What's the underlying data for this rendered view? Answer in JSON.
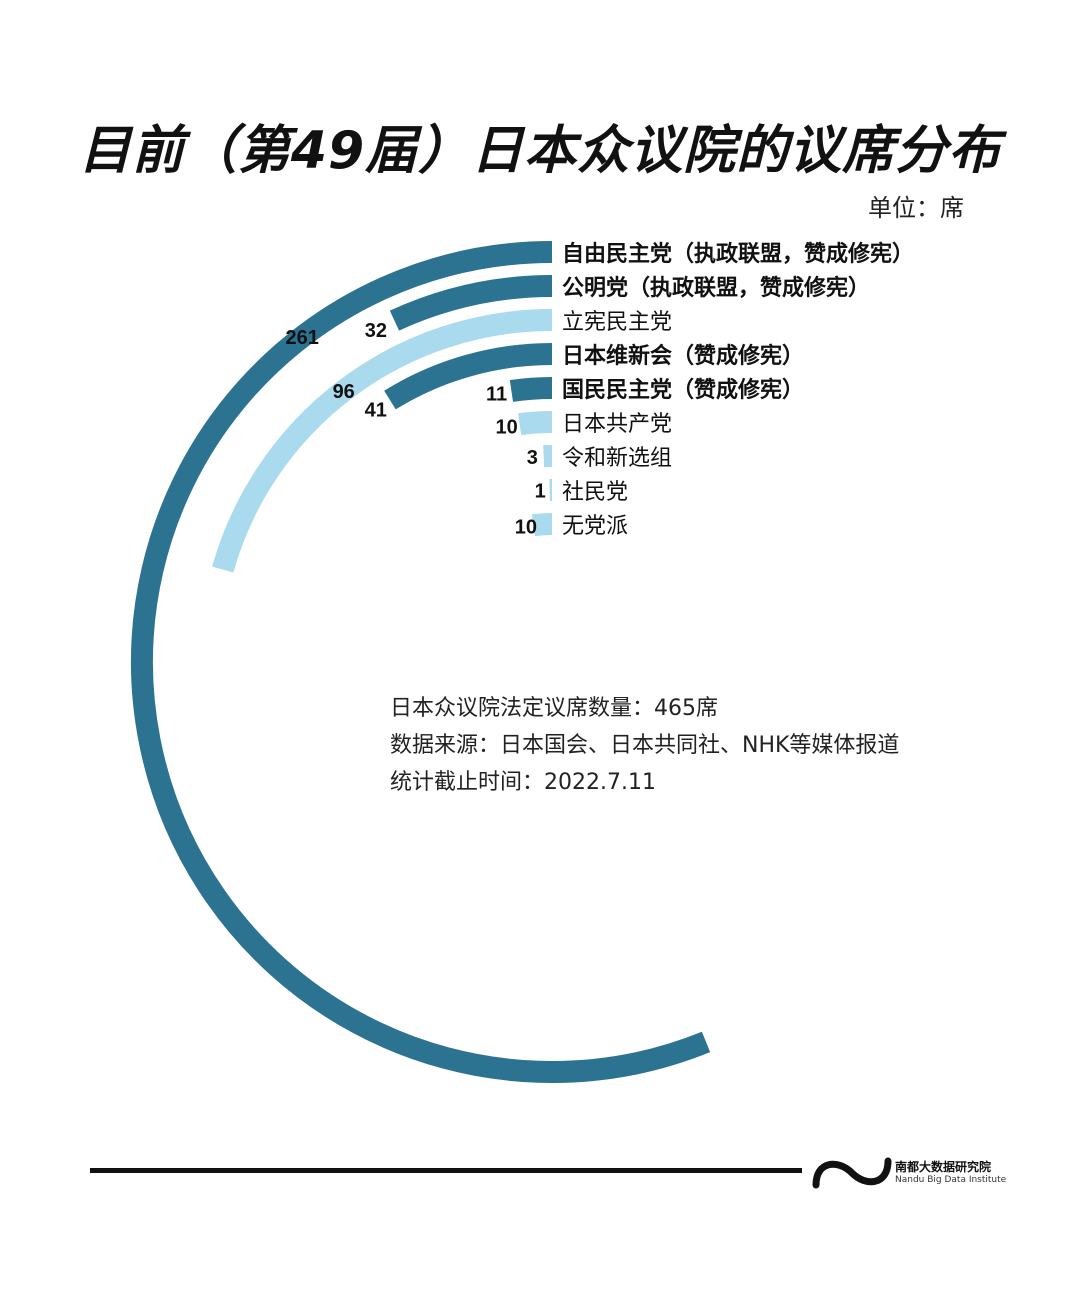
{
  "title": "目前（第49届）日本众议院的议席分布",
  "unit": "单位：席",
  "notes": [
    "日本众议院法定议席数量：465席",
    "数据来源：日本国会、日本共同社、NHK等媒体报道",
    "统计截止时间：2022.7.11"
  ],
  "brand": {
    "cn": "南都大数据研究院",
    "en": "Nandu Big Data Institute"
  },
  "colors": {
    "dark": "#2c7391",
    "light": "#a9daee"
  },
  "chart_data": {
    "type": "radial-bar",
    "title": "目前（第49届）日本众议院的议席分布",
    "unit": "席",
    "total": 465,
    "categories": [
      "自由民主党（执政联盟，赞成修宪）",
      "公明党（执政联盟，赞成修宪）",
      "立宪民主党",
      "日本维新会（赞成修宪）",
      "国民民主党（赞成修宪）",
      "日本共产党",
      "令和新选组",
      "社民党",
      "无党派"
    ],
    "values": [
      261,
      32,
      96,
      41,
      11,
      10,
      3,
      1,
      10
    ],
    "value_labels": [
      "261",
      "32",
      "96",
      "41",
      "11",
      "10",
      "3",
      "1",
      "10"
    ],
    "emphasis": [
      true,
      true,
      false,
      true,
      true,
      false,
      false,
      false,
      false
    ],
    "color_group": [
      "dark",
      "dark",
      "light",
      "dark",
      "dark",
      "light",
      "light",
      "light",
      "light"
    ]
  }
}
